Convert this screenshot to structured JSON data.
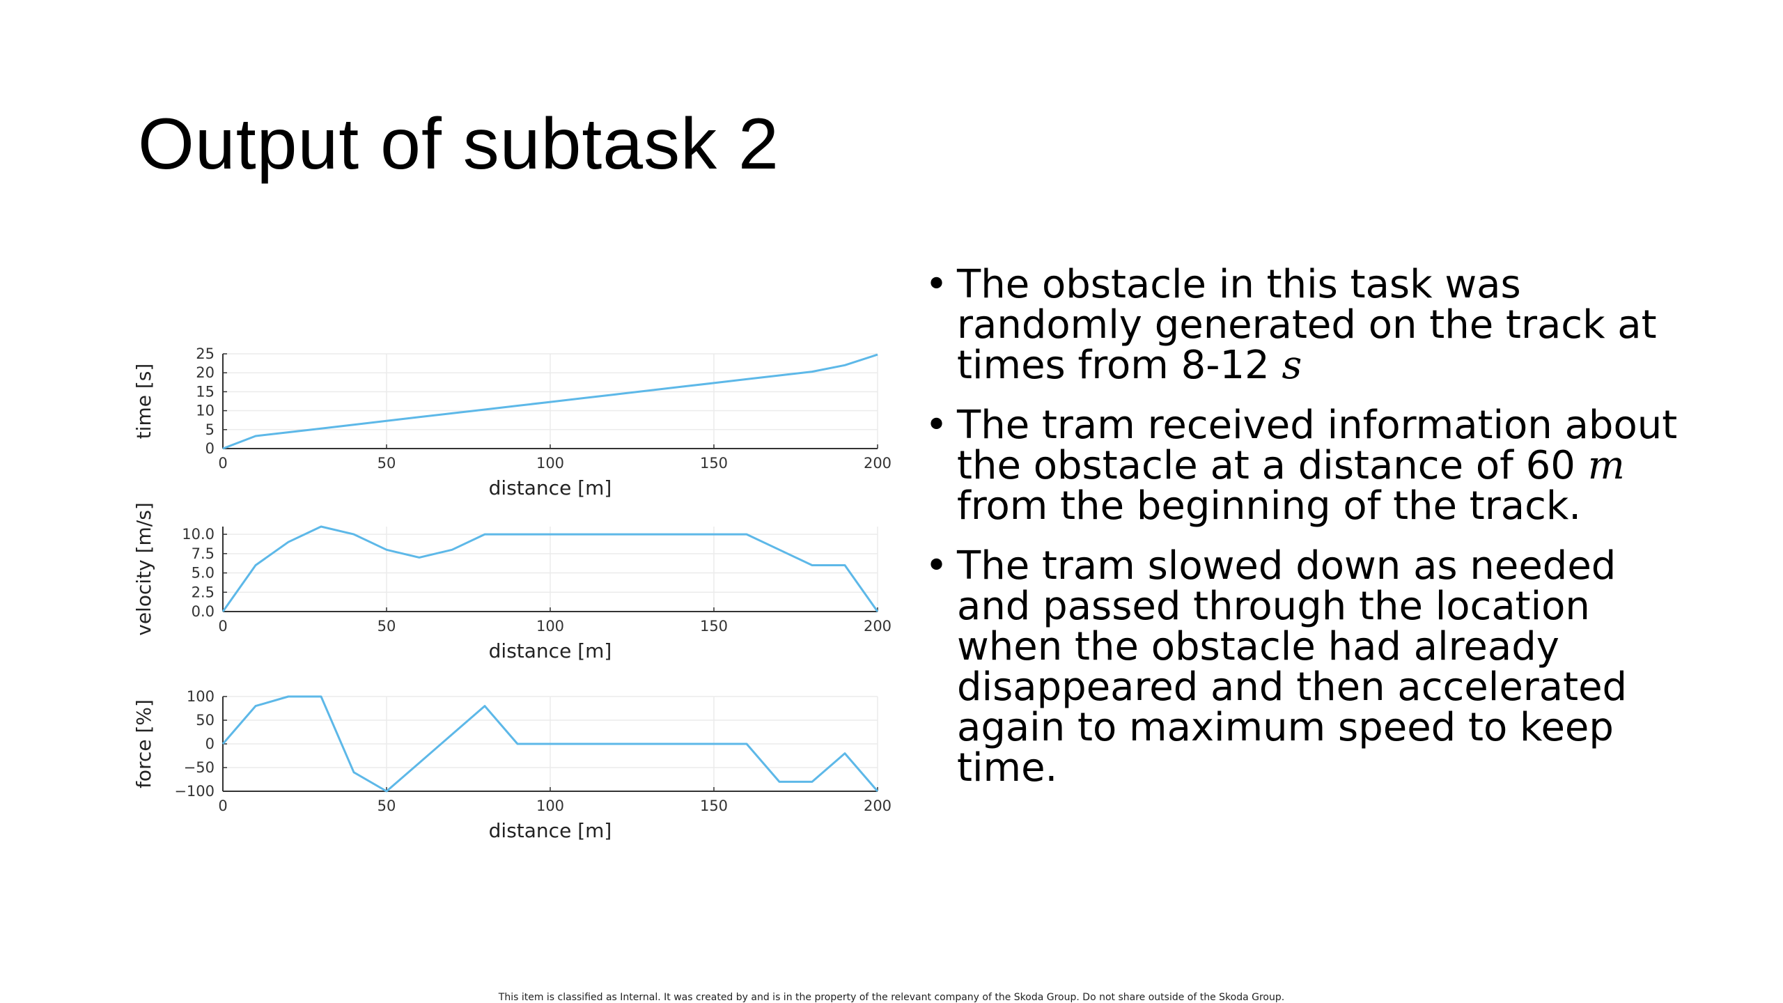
{
  "slide": {
    "title": "Output of subtask 2",
    "footer": "This item is classified as Internal. It was created by and is in the property of the relevant company of the Skoda Group. Do not share outside of the Skoda Group."
  },
  "bullets": [
    {
      "before": "The obstacle in this task was randomly generated on the track at times from 8-12 ",
      "math": "s",
      "after": ""
    },
    {
      "before": "The tram received information about the obstacle at a distance of 60 ",
      "math": "m",
      "after": " from the beginning of the track."
    },
    {
      "before": "The tram slowed down as needed and passed through the location when the obstacle had already disappeared and then accelerated again to maximum speed to keep time.",
      "math": "",
      "after": ""
    }
  ],
  "colors": {
    "series": "#5db8e8",
    "axis": "#333333",
    "grid": "#ebebeb"
  },
  "chart_data": [
    {
      "type": "line",
      "xlabel": "distance [m]",
      "ylabel": "time [s]",
      "xlim": [
        0,
        200
      ],
      "ylim": [
        0,
        25
      ],
      "xticks": [
        0,
        50,
        100,
        150,
        200
      ],
      "yticks": [
        0,
        5,
        10,
        15,
        20,
        25
      ],
      "ytick_labels": [
        "0",
        "5",
        "10",
        "15",
        "20",
        "25"
      ],
      "grid": true,
      "x": [
        0,
        10,
        20,
        30,
        40,
        50,
        60,
        70,
        80,
        90,
        100,
        110,
        120,
        130,
        140,
        150,
        160,
        170,
        180,
        190,
        200
      ],
      "y": [
        0,
        3.3,
        4.3,
        5.3,
        6.3,
        7.3,
        8.3,
        9.3,
        10.3,
        11.3,
        12.3,
        13.3,
        14.3,
        15.3,
        16.3,
        17.3,
        18.3,
        19.3,
        20.3,
        22,
        24.8
      ]
    },
    {
      "type": "line",
      "xlabel": "distance [m]",
      "ylabel": "velocity [m/s]",
      "xlim": [
        0,
        200
      ],
      "ylim": [
        0,
        11
      ],
      "xticks": [
        0,
        50,
        100,
        150,
        200
      ],
      "yticks": [
        0,
        2.5,
        5,
        7.5,
        10
      ],
      "ytick_labels": [
        "0.0",
        "2.5",
        "5.0",
        "7.5",
        "10.0"
      ],
      "grid": true,
      "x": [
        0,
        10,
        20,
        30,
        40,
        50,
        60,
        70,
        80,
        90,
        100,
        110,
        120,
        130,
        140,
        150,
        160,
        170,
        180,
        190,
        200
      ],
      "y": [
        0,
        6,
        9,
        11,
        10,
        8,
        7,
        8,
        10,
        10,
        10,
        10,
        10,
        10,
        10,
        10,
        10,
        8,
        6,
        6,
        0
      ]
    },
    {
      "type": "line",
      "xlabel": "distance [m]",
      "ylabel": "force [%]",
      "xlim": [
        0,
        200
      ],
      "ylim": [
        -100,
        100
      ],
      "xticks": [
        0,
        50,
        100,
        150,
        200
      ],
      "yticks": [
        -100,
        -50,
        0,
        50,
        100
      ],
      "ytick_labels": [
        "−100",
        "−50",
        "0",
        "50",
        "100"
      ],
      "grid": true,
      "x": [
        0,
        10,
        20,
        30,
        40,
        50,
        60,
        70,
        80,
        90,
        100,
        110,
        120,
        130,
        140,
        150,
        160,
        170,
        180,
        190,
        200
      ],
      "y": [
        0,
        80,
        100,
        100,
        -60,
        -100,
        -40,
        20,
        80,
        0,
        0,
        0,
        0,
        0,
        0,
        0,
        0,
        -80,
        -80,
        -20,
        -100
      ]
    }
  ]
}
